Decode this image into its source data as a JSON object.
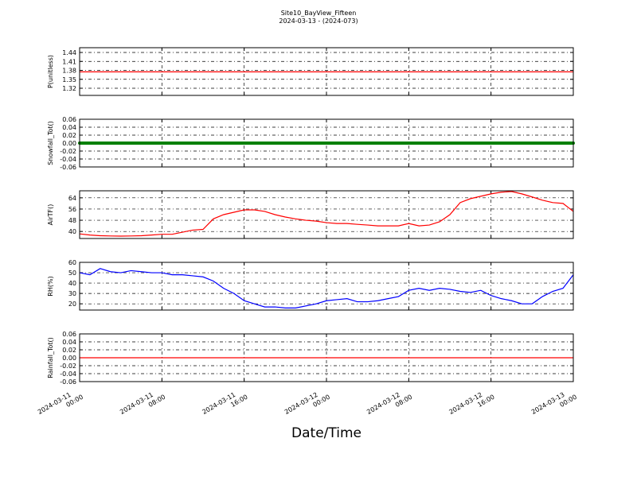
{
  "figure": {
    "title": "Site10_BayView_Fifteen",
    "subtitle": "2024-03-13 - (2024-073)",
    "x_label": "Date/Time",
    "x": [
      "2024-03-11 00:00",
      "2024-03-11 01:00",
      "2024-03-11 02:00",
      "2024-03-11 03:00",
      "2024-03-11 04:00",
      "2024-03-11 05:00",
      "2024-03-11 06:00",
      "2024-03-11 07:00",
      "2024-03-11 08:00",
      "2024-03-11 09:00",
      "2024-03-11 10:00",
      "2024-03-11 11:00",
      "2024-03-11 12:00",
      "2024-03-11 13:00",
      "2024-03-11 14:00",
      "2024-03-11 15:00",
      "2024-03-11 16:00",
      "2024-03-11 17:00",
      "2024-03-11 18:00",
      "2024-03-11 19:00",
      "2024-03-11 20:00",
      "2024-03-11 21:00",
      "2024-03-11 22:00",
      "2024-03-11 23:00",
      "2024-03-12 00:00",
      "2024-03-12 01:00",
      "2024-03-12 02:00",
      "2024-03-12 03:00",
      "2024-03-12 04:00",
      "2024-03-12 05:00",
      "2024-03-12 06:00",
      "2024-03-12 07:00",
      "2024-03-12 08:00",
      "2024-03-12 09:00",
      "2024-03-12 10:00",
      "2024-03-12 11:00",
      "2024-03-12 12:00",
      "2024-03-12 13:00",
      "2024-03-12 14:00",
      "2024-03-12 15:00",
      "2024-03-12 16:00",
      "2024-03-12 17:00",
      "2024-03-12 18:00",
      "2024-03-12 19:00",
      "2024-03-12 20:00",
      "2024-03-12 21:00",
      "2024-03-12 22:00",
      "2024-03-12 23:00",
      "2024-03-13 00:00"
    ],
    "xticks": [
      "2024-03-11 00:00",
      "2024-03-11 08:00",
      "2024-03-11 16:00",
      "2024-03-12 00:00",
      "2024-03-12 08:00",
      "2024-03-12 16:00",
      "2024-03-13 00:00"
    ]
  },
  "chart_data": [
    {
      "type": "line",
      "ylabel": "P(unitless)",
      "ylim": [
        1.296,
        1.456
      ],
      "yticks": [
        1.32,
        1.35,
        1.38,
        1.41,
        1.44
      ],
      "grid": true,
      "color": "#ff0000",
      "values": [
        1.375,
        1.375,
        1.375,
        1.375,
        1.375,
        1.375,
        1.375,
        1.375,
        1.375,
        1.375,
        1.375,
        1.375,
        1.375,
        1.375,
        1.375,
        1.375,
        1.375,
        1.375,
        1.375,
        1.375,
        1.375,
        1.375,
        1.375,
        1.375,
        1.375,
        1.375,
        1.375,
        1.375,
        1.375,
        1.375,
        1.375,
        1.375,
        1.375,
        1.375,
        1.375,
        1.375,
        1.375,
        1.375,
        1.375,
        1.375,
        1.375,
        1.375,
        1.375,
        1.375,
        1.375,
        1.375,
        1.375,
        1.375,
        1.375
      ]
    },
    {
      "type": "line",
      "markers": true,
      "ylabel": "Snowfall_Tot()",
      "ylim": [
        -0.06,
        0.06
      ],
      "yticks": [
        -0.06,
        -0.04,
        -0.02,
        {
          "value": 0,
          "label": "0.00"
        },
        0.02,
        0.04,
        0.06
      ],
      "grid": true,
      "color": "#008000",
      "values": [
        0,
        0,
        0,
        0,
        0,
        0,
        0,
        0,
        0,
        0,
        0,
        0,
        0,
        0,
        0,
        0,
        0,
        0,
        0,
        0,
        0,
        0,
        0,
        0,
        0,
        0,
        0,
        0,
        0,
        0,
        0,
        0,
        0,
        0,
        0,
        0,
        0,
        0,
        0,
        0,
        0,
        0,
        0,
        0,
        0,
        0,
        0,
        0,
        0
      ]
    },
    {
      "type": "line",
      "ylabel": "AirTF()",
      "ylim": [
        35,
        69
      ],
      "yticks": [
        40,
        48,
        56,
        64
      ],
      "grid": true,
      "color": "#ff0000",
      "values": [
        38.3,
        37.5,
        37,
        36.8,
        36.7,
        36.8,
        37,
        37.5,
        38,
        38,
        39.5,
        41,
        41.5,
        49,
        52,
        53.7,
        55.4,
        55.4,
        54.3,
        52,
        50.3,
        49,
        48,
        47.4,
        46.3,
        45.7,
        45.7,
        45.1,
        44.6,
        44,
        44,
        44,
        45.7,
        44,
        44.6,
        46.9,
        52,
        60.6,
        63.4,
        65.1,
        66.8,
        68,
        68.5,
        66.8,
        64.6,
        62.3,
        60.6,
        60,
        54.3
      ]
    },
    {
      "type": "line",
      "ylabel": "RH(%)",
      "ylim": [
        14,
        60
      ],
      "yticks": [
        20,
        30,
        40,
        50,
        60
      ],
      "grid": true,
      "color": "#0000ff",
      "values": [
        50,
        48,
        54,
        51,
        50,
        52,
        51,
        50,
        50,
        48,
        48,
        47,
        46,
        42,
        35,
        30,
        23,
        20,
        17,
        17,
        16,
        16,
        18,
        20,
        23,
        24,
        25,
        22,
        22,
        23,
        25,
        27,
        33,
        35,
        33,
        35,
        34,
        32,
        31,
        33,
        28,
        25,
        23,
        20,
        20,
        27,
        32,
        35,
        48
      ]
    },
    {
      "type": "line",
      "ylabel": "Rainfall_Tot()",
      "ylim": [
        -0.06,
        0.06
      ],
      "yticks": [
        -0.06,
        -0.04,
        -0.02,
        {
          "value": 0,
          "label": "0.00"
        },
        0.02,
        0.04,
        0.06
      ],
      "grid": true,
      "color": "#ff0000",
      "values": [
        0,
        0,
        0,
        0,
        0,
        0,
        0,
        0,
        0,
        0,
        0,
        0,
        0,
        0,
        0,
        0,
        0,
        0,
        0,
        0,
        0,
        0,
        0,
        0,
        0,
        0,
        0,
        0,
        0,
        0,
        0,
        0,
        0,
        0,
        0,
        0,
        0,
        0,
        0,
        0,
        0,
        0,
        0,
        0,
        0,
        0,
        0,
        0,
        0
      ]
    }
  ]
}
